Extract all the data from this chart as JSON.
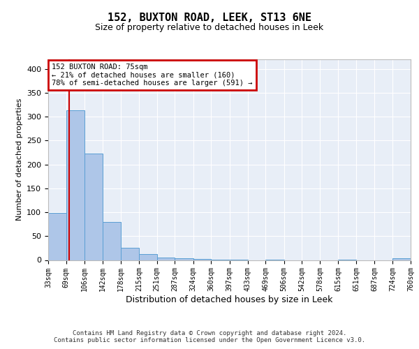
{
  "title": "152, BUXTON ROAD, LEEK, ST13 6NE",
  "subtitle": "Size of property relative to detached houses in Leek",
  "xlabel": "Distribution of detached houses by size in Leek",
  "ylabel": "Number of detached properties",
  "bin_edges": [
    33,
    69,
    106,
    142,
    178,
    215,
    251,
    287,
    324,
    360,
    397,
    433,
    469,
    506,
    542,
    578,
    615,
    651,
    687,
    724,
    760
  ],
  "bar_heights": [
    98,
    313,
    223,
    80,
    26,
    13,
    5,
    3,
    2,
    1,
    1,
    0,
    1,
    0,
    0,
    0,
    1,
    0,
    0,
    4
  ],
  "bar_color": "#aec6e8",
  "bar_edge_color": "#5a9fd4",
  "property_line_x": 75,
  "property_line_color": "#cc0000",
  "annotation_text": "152 BUXTON ROAD: 75sqm\n← 21% of detached houses are smaller (160)\n78% of semi-detached houses are larger (591) →",
  "annotation_box_color": "#cc0000",
  "ylim": [
    0,
    420
  ],
  "yticks": [
    0,
    50,
    100,
    150,
    200,
    250,
    300,
    350,
    400
  ],
  "footer_text": "Contains HM Land Registry data © Crown copyright and database right 2024.\nContains public sector information licensed under the Open Government Licence v3.0.",
  "background_color": "#e8eef7"
}
